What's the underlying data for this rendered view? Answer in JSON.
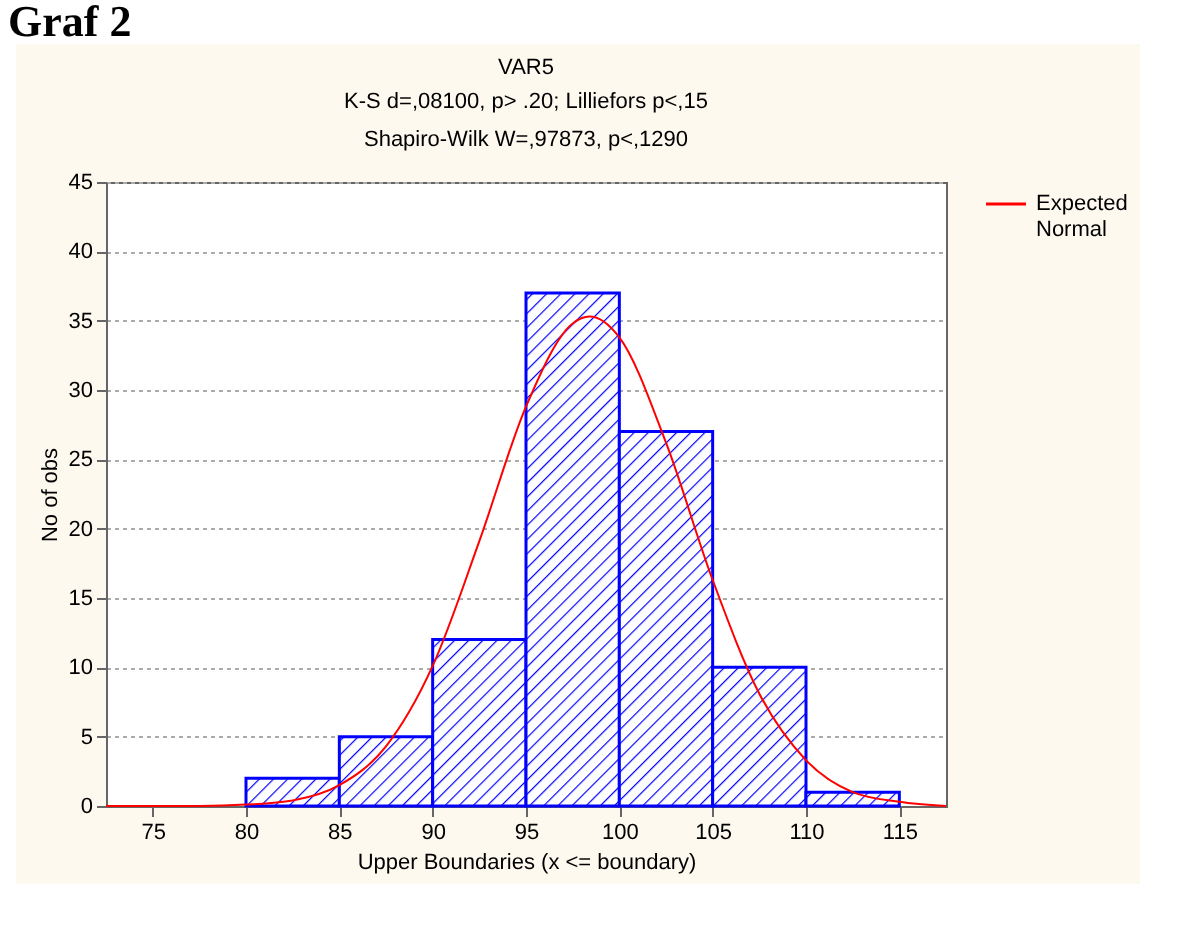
{
  "chart_data": {
    "type": "histogram",
    "title": "VAR5",
    "subtitle": [
      "K-S d=,08100, p> .20; Lilliefors p<,15",
      "Shapiro-Wilk W=,97873, p<,1290"
    ],
    "annotations": [
      "Graf 2"
    ],
    "xlabel": "Upper Boundaries (x <= boundary)",
    "ylabel": "No of obs",
    "series": [
      {
        "color": "#0000ff",
        "bins": [
          80,
          85,
          90,
          95,
          100,
          105,
          110,
          115
        ],
        "values": [
          2,
          5,
          12,
          37,
          27,
          10,
          1
        ]
      },
      {
        "type": "line",
        "name": "Expected Normal",
        "color": "#ff0000",
        "x": [
          72.5,
          75,
          77.5,
          80,
          82.5,
          85,
          87.5,
          90,
          92.5,
          95,
          97.5,
          98.4,
          100,
          102.5,
          105,
          107.5,
          110,
          112.5,
          115,
          117.5
        ],
        "values": [
          0,
          0,
          0,
          0.1,
          0.4,
          1.5,
          4.3,
          10.1,
          19.1,
          28.8,
          34.8,
          35.3,
          33.8,
          26.2,
          16.3,
          8.1,
          3.3,
          1.0,
          0.3,
          0
        ]
      }
    ],
    "xlim": [
      72.5,
      117.5
    ],
    "xticks": [
      75,
      80,
      85,
      90,
      95,
      100,
      105,
      110,
      115
    ],
    "ylim": [
      0,
      45
    ],
    "yticks": [
      0,
      5,
      10,
      15,
      20,
      25,
      30,
      35,
      40,
      45
    ],
    "grid": "y",
    "legend": "right"
  }
}
